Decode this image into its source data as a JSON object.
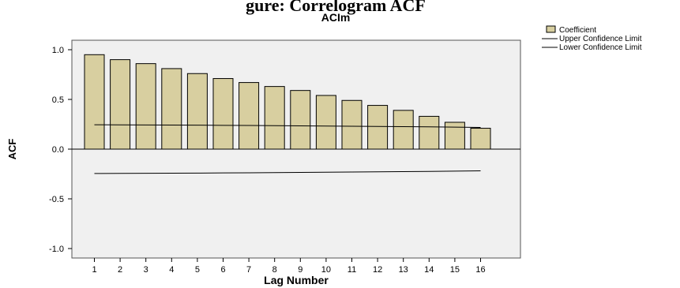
{
  "header_text": "gure: Correlogram ACF",
  "chart_data": {
    "type": "bar",
    "title": "ACIm",
    "xlabel": "Lag Number",
    "ylabel": "ACF",
    "categories": [
      "1",
      "2",
      "3",
      "4",
      "5",
      "6",
      "7",
      "8",
      "9",
      "10",
      "11",
      "12",
      "13",
      "14",
      "15",
      "16"
    ],
    "ylim": [
      -1.1,
      1.1
    ],
    "yticks": [
      "1.0",
      "0.5",
      "0.0",
      "-0.5",
      "-1.0"
    ],
    "series": [
      {
        "name": "Coefficient",
        "values": [
          0.95,
          0.9,
          0.86,
          0.81,
          0.76,
          0.71,
          0.67,
          0.63,
          0.59,
          0.54,
          0.49,
          0.44,
          0.39,
          0.33,
          0.27,
          0.21
        ]
      }
    ],
    "upper_confidence_limit": {
      "name": "Upper Confidence Limit",
      "values": [
        0.245,
        0.244,
        0.243,
        0.242,
        0.241,
        0.239,
        0.238,
        0.236,
        0.234,
        0.232,
        0.23,
        0.228,
        0.226,
        0.224,
        0.221,
        0.218
      ]
    },
    "lower_confidence_limit": {
      "name": "Lower Confidence Limit",
      "values": [
        -0.245,
        -0.244,
        -0.243,
        -0.242,
        -0.241,
        -0.239,
        -0.238,
        -0.236,
        -0.234,
        -0.232,
        -0.23,
        -0.228,
        -0.226,
        -0.224,
        -0.221,
        -0.218
      ]
    },
    "legend": {
      "placement": "top-right",
      "entries": [
        "Coefficient",
        "Upper Confidence Limit",
        "Lower Confidence Limit"
      ]
    },
    "grid": false,
    "colors": {
      "bar_fill": "#d8cfa0",
      "bar_stroke": "#000000",
      "plot_bg": "#f0f0f0",
      "line": "#000000"
    }
  }
}
